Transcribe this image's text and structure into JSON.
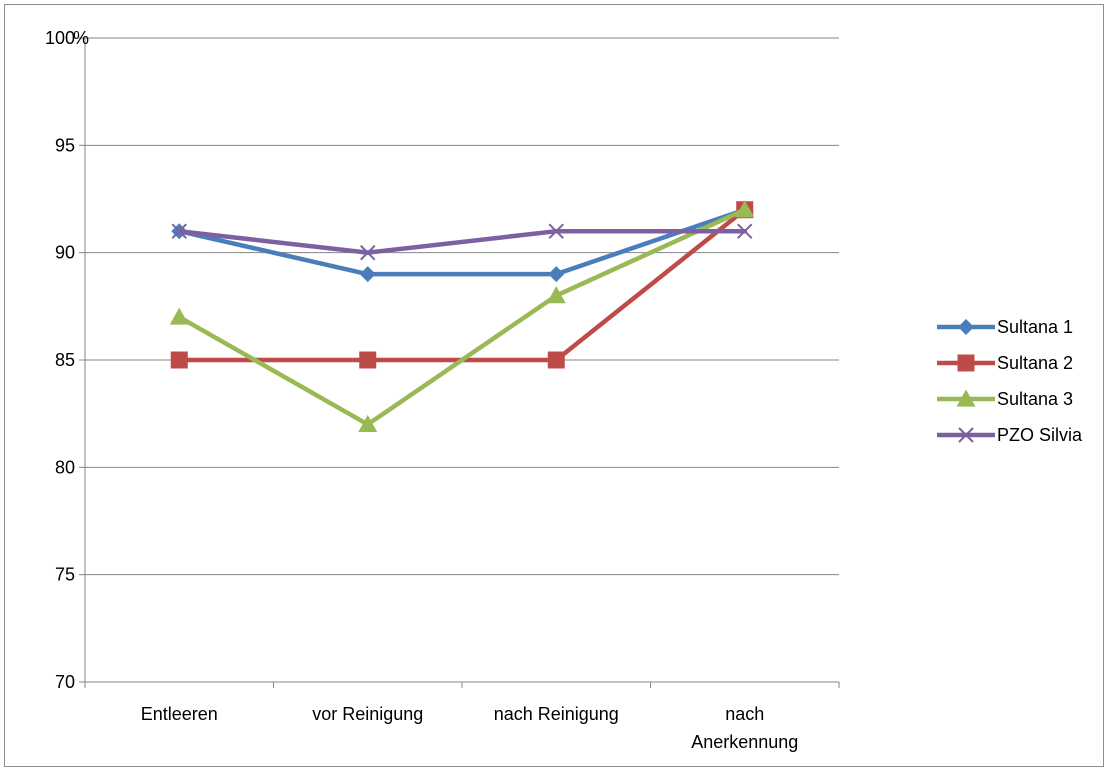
{
  "chart_data": {
    "type": "line",
    "categories": [
      "Entleeren",
      "vor Reinigung",
      "nach Reinigung",
      "nach\nAnerkennung"
    ],
    "series": [
      {
        "name": "Sultana 1",
        "values": [
          91,
          89,
          89,
          92
        ],
        "color": "#4a7ebb",
        "marker": "diamond"
      },
      {
        "name": "Sultana 2",
        "values": [
          85,
          85,
          85,
          92
        ],
        "color": "#be4b48",
        "marker": "square"
      },
      {
        "name": "Sultana 3",
        "values": [
          87,
          82,
          88,
          92
        ],
        "color": "#98b954",
        "marker": "triangle"
      },
      {
        "name": "PZO Silvia",
        "values": [
          91,
          90,
          91,
          91
        ],
        "color": "#7d60a0",
        "marker": "x"
      }
    ],
    "ylim": [
      70,
      100
    ],
    "yticks": [
      70,
      75,
      80,
      85,
      90,
      95,
      100
    ],
    "ytick_labels": [
      "70",
      "75",
      "80",
      "85",
      "90",
      "95",
      "100"
    ],
    "yunit": "%",
    "grid": true,
    "legend_position": "right",
    "gridline_color": "#868686",
    "axis_color": "#868686"
  }
}
